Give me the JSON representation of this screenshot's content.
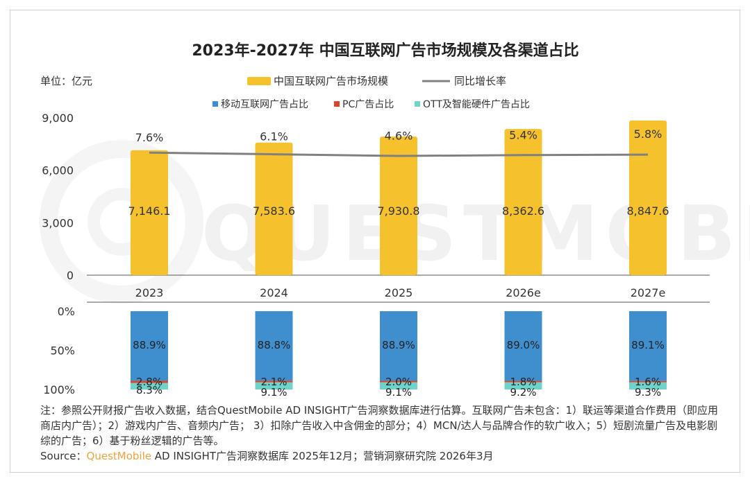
{
  "chart_data": [
    {
      "type": "bar",
      "title": "2023年-2027年 中国互联网广告市场规模及各渠道占比",
      "unit_label": "单位：亿元",
      "categories": [
        "2023",
        "2024",
        "2025",
        "2026e",
        "2027e"
      ],
      "series": [
        {
          "name": "中国互联网广告市场规模",
          "type": "bar",
          "values": [
            7146.1,
            7583.6,
            7930.8,
            8362.6,
            8847.6
          ],
          "labels": [
            "7,146.1",
            "7,583.6",
            "7,930.8",
            "8,362.6",
            "8,847.6"
          ],
          "color": "#f5c22e"
        },
        {
          "name": "同比增长率",
          "type": "line",
          "values": [
            7.6,
            6.1,
            4.6,
            5.4,
            5.8
          ],
          "labels": [
            "7.6%",
            "6.1%",
            "4.6%",
            "5.4%",
            "5.8%"
          ],
          "color": "#808080"
        }
      ],
      "ylim": [
        0,
        9000
      ],
      "yticks": [
        "0",
        "3,000",
        "6,000",
        "9,000"
      ],
      "legend_position": "top-center"
    },
    {
      "type": "bar",
      "stacked": true,
      "categories": [
        "2023",
        "2024",
        "2025",
        "2026e",
        "2027e"
      ],
      "series": [
        {
          "name": "移动互联网广告占比",
          "values": [
            88.9,
            88.8,
            88.9,
            89.0,
            89.1
          ],
          "labels": [
            "88.9%",
            "88.8%",
            "88.9%",
            "89.0%",
            "89.1%"
          ],
          "color": "#3f8fcf"
        },
        {
          "name": "PC广告占比",
          "values": [
            2.8,
            2.1,
            2.0,
            1.8,
            1.6
          ],
          "labels": [
            "2.8%",
            "2.1%",
            "2.0%",
            "1.8%",
            "1.6%"
          ],
          "color": "#d9472b"
        },
        {
          "name": "OTT及智能硬件广告占比",
          "values": [
            8.3,
            9.1,
            9.1,
            9.2,
            9.3
          ],
          "labels": [
            "8.3%",
            "9.1%",
            "9.1%",
            "9.2%",
            "9.3%"
          ],
          "color": "#6fd3cc"
        }
      ],
      "ylim": [
        0,
        100
      ],
      "yticks": [
        "0%",
        "50%",
        "100%"
      ],
      "legend_position": "top-center"
    }
  ],
  "watermark": "QUESTMOBILE",
  "footnote": {
    "note": "注：参照公开财报广告收入数据，结合QuestMobile AD INSIGHT广告洞察数据库进行估算。互联网广告未包含：1）联运等渠道合作费用（即应用商店内广告）；2）游戏内广告、音频内广告； 3）扣除广告收入中含佣金的部分；4）MCN/达人与品牌合作的软广收入；5）短剧流量广告及电影剧综的广告；6）基于粉丝逻辑的广告等。",
    "source_prefix": "Source：",
    "source_brand": "QuestMobile",
    "source_rest": " AD INSIGHT广告洞察数据库 2025年12月；营销洞察研究院 2026年3月"
  }
}
